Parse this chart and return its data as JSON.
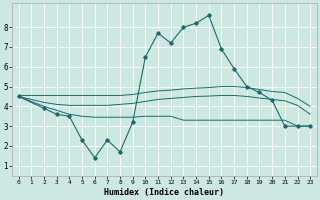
{
  "title": "",
  "xlabel": "Humidex (Indice chaleur)",
  "bg_color": "#cce8e0",
  "grid_color": "#ffffff",
  "line_color": "#1a6b6b",
  "xlim": [
    -0.5,
    23.5
  ],
  "ylim": [
    0.5,
    9.2
  ],
  "xticks": [
    0,
    1,
    2,
    3,
    4,
    5,
    6,
    7,
    8,
    9,
    10,
    11,
    12,
    13,
    14,
    15,
    16,
    17,
    18,
    19,
    20,
    21,
    22,
    23
  ],
  "yticks": [
    1,
    2,
    3,
    4,
    5,
    6,
    7,
    8
  ],
  "series": {
    "main": {
      "x": [
        0,
        2,
        3,
        4,
        5,
        6,
        7,
        8,
        9,
        10,
        11,
        12,
        13,
        14,
        15,
        16,
        17,
        18,
        19,
        20,
        21,
        22,
        23
      ],
      "y": [
        4.5,
        3.9,
        3.6,
        3.5,
        2.3,
        1.4,
        2.3,
        1.7,
        3.2,
        6.5,
        7.7,
        7.2,
        8.0,
        8.2,
        8.6,
        6.9,
        5.9,
        5.0,
        4.7,
        4.3,
        3.0,
        3.0,
        3.0
      ]
    },
    "upper": {
      "x": [
        0,
        2,
        3,
        4,
        5,
        6,
        7,
        8,
        9,
        10,
        11,
        12,
        13,
        14,
        15,
        16,
        17,
        18,
        19,
        20,
        21,
        22,
        23
      ],
      "y": [
        4.55,
        4.55,
        4.55,
        4.55,
        4.55,
        4.55,
        4.55,
        4.55,
        4.6,
        4.7,
        4.78,
        4.82,
        4.88,
        4.92,
        4.95,
        5.0,
        5.0,
        4.95,
        4.85,
        4.75,
        4.7,
        4.4,
        4.0
      ]
    },
    "mid": {
      "x": [
        0,
        2,
        3,
        4,
        5,
        6,
        7,
        8,
        9,
        10,
        11,
        12,
        13,
        14,
        15,
        16,
        17,
        18,
        19,
        20,
        21,
        22,
        23
      ],
      "y": [
        4.5,
        4.2,
        4.1,
        4.05,
        4.05,
        4.05,
        4.05,
        4.1,
        4.15,
        4.25,
        4.35,
        4.4,
        4.45,
        4.5,
        4.52,
        4.55,
        4.55,
        4.5,
        4.42,
        4.35,
        4.28,
        4.05,
        3.6
      ]
    },
    "lower": {
      "x": [
        0,
        2,
        3,
        4,
        5,
        6,
        7,
        8,
        9,
        10,
        11,
        12,
        13,
        14,
        15,
        16,
        17,
        18,
        19,
        20,
        21,
        22,
        23
      ],
      "y": [
        4.5,
        4.0,
        3.8,
        3.6,
        3.5,
        3.45,
        3.45,
        3.45,
        3.45,
        3.5,
        3.5,
        3.5,
        3.3,
        3.3,
        3.3,
        3.3,
        3.3,
        3.3,
        3.3,
        3.3,
        3.3,
        3.0,
        3.0
      ]
    }
  }
}
